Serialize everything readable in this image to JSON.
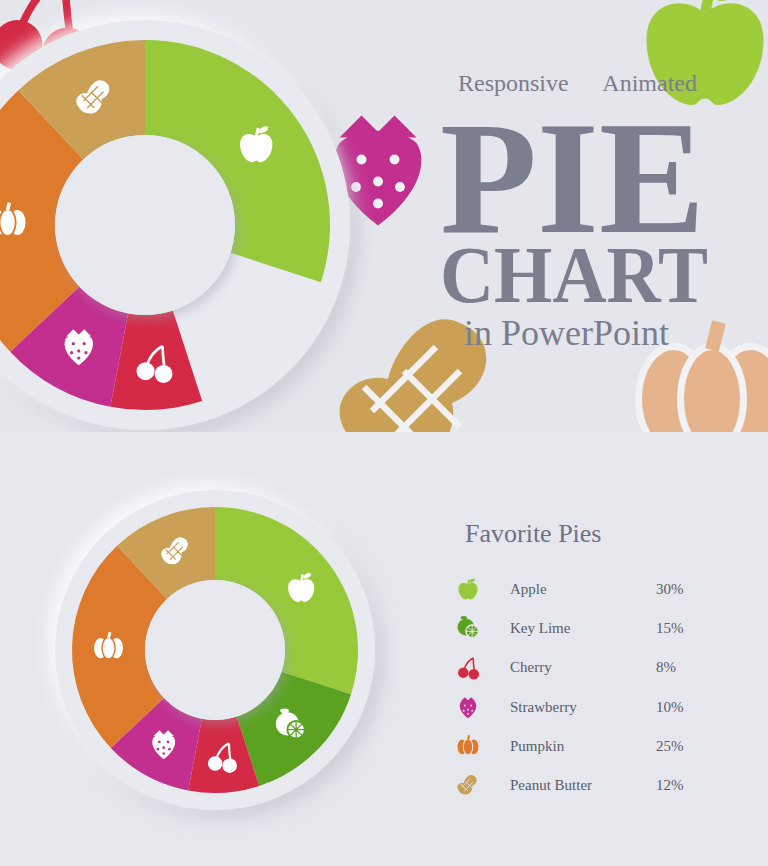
{
  "banner": {
    "tags": [
      "Responsive",
      "Animated"
    ],
    "title": [
      "PIE",
      "CHART"
    ],
    "subtitle": "in PowerPoint"
  },
  "chart_data": {
    "type": "donut",
    "title": "Favorite Pies",
    "categories": [
      "Apple",
      "Key Lime",
      "Cherry",
      "Strawberry",
      "Pumpkin",
      "Peanut Butter"
    ],
    "values": [
      30,
      15,
      8,
      10,
      25,
      12
    ],
    "value_labels": [
      "30%",
      "15%",
      "8%",
      "10%",
      "25%",
      "12%"
    ],
    "colors": [
      "#97c93a",
      "#5ba220",
      "#d42a45",
      "#c22f8f",
      "#de7a2c",
      "#c9a055"
    ],
    "legend": "right"
  }
}
